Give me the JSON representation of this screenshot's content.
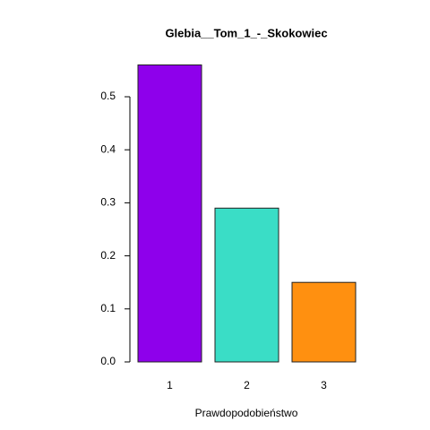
{
  "chart_data": {
    "type": "bar",
    "title": "Glebia__Tom_1_-_Skokowiec",
    "x_label": "Prawdopodobieństwo",
    "categories": [
      "1",
      "2",
      "3"
    ],
    "values": [
      0.56,
      0.29,
      0.15
    ],
    "colors": [
      "#8e00eb",
      "#3addc6",
      "#ff9010"
    ],
    "ylim": [
      0,
      0.6
    ],
    "yticks": [
      {
        "value": 0,
        "label": "0.0"
      },
      0.1,
      0.2,
      0.3,
      0.4,
      0.5
    ]
  }
}
